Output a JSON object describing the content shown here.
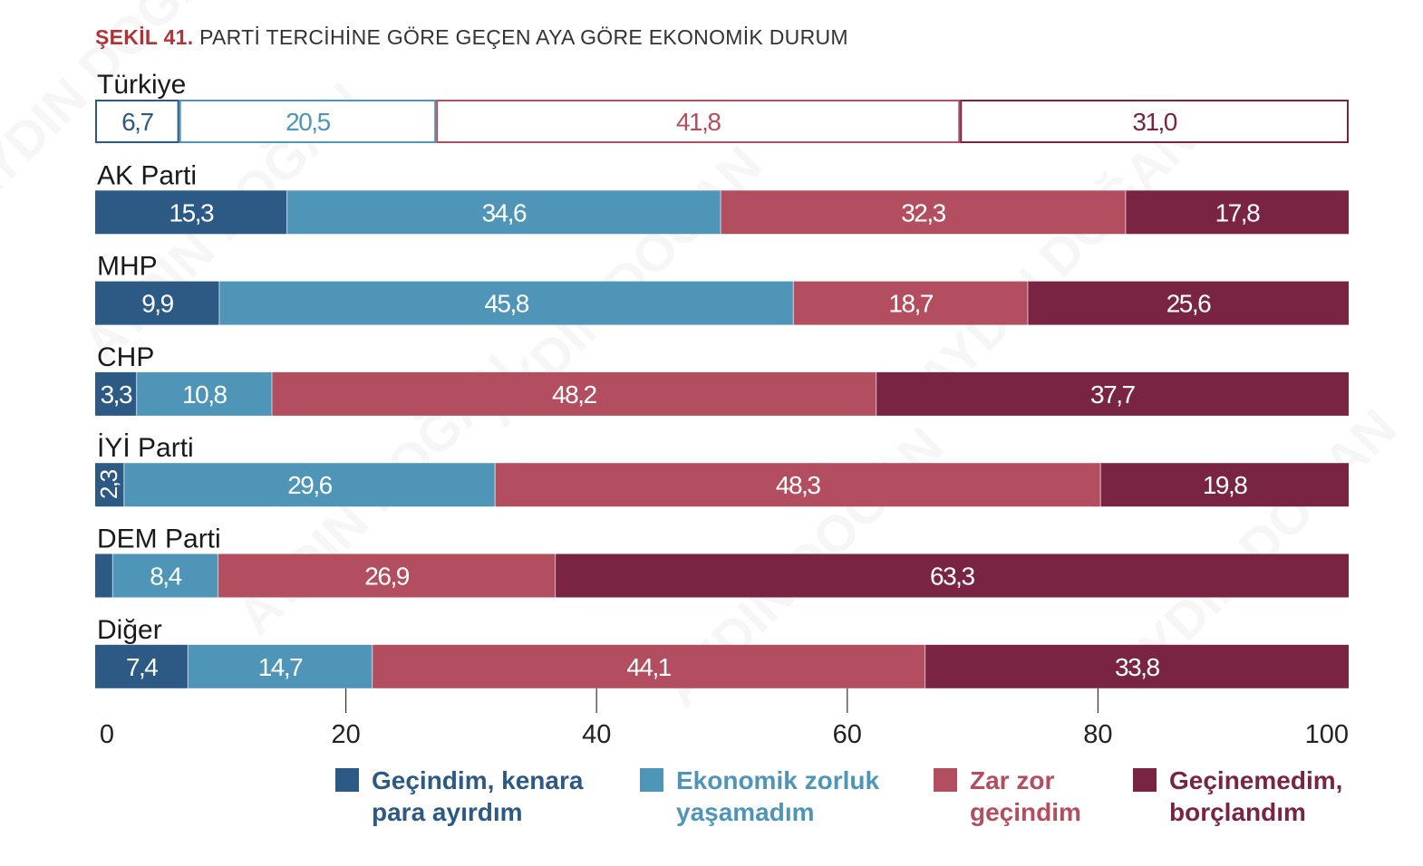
{
  "chart_data": {
    "type": "bar",
    "orientation": "horizontal",
    "stacked": true,
    "title_prefix": "ŞEKİL 41.",
    "title": "PARTİ TERCİHİNE GÖRE GEÇEN AYA GÖRE EKONOMİK DURUM",
    "categories": [
      "Türkiye",
      "AK Parti",
      "MHP",
      "CHP",
      "İYİ Parti",
      "DEM Parti",
      "Diğer"
    ],
    "series": [
      {
        "name": "Geçindim, kenara para ayırdım",
        "label_lines": [
          "Geçindim, kenara",
          "para ayırdım"
        ],
        "color": "#2d5985",
        "values": [
          6.7,
          15.3,
          9.9,
          3.3,
          2.3,
          1.4,
          7.4
        ],
        "labels": [
          "6,7",
          "15,3",
          "9,9",
          "3,3",
          "2,3",
          "",
          "7,4"
        ]
      },
      {
        "name": "Ekonomik zorluk yaşamadım",
        "label_lines": [
          "Ekonomik zorluk",
          "yaşamadım"
        ],
        "color": "#4e95b8",
        "values": [
          20.5,
          34.6,
          45.8,
          10.8,
          29.6,
          8.4,
          14.7
        ],
        "labels": [
          "20,5",
          "34,6",
          "45,8",
          "10,8",
          "29,6",
          "8,4",
          "14,7"
        ]
      },
      {
        "name": "Zar zor geçindim",
        "label_lines": [
          "Zar zor",
          "geçindim"
        ],
        "color": "#b24e5f",
        "values": [
          41.8,
          32.3,
          18.7,
          48.2,
          48.3,
          26.9,
          44.1
        ],
        "labels": [
          "41,8",
          "32,3",
          "18,7",
          "48,2",
          "48,3",
          "26,9",
          "44,1"
        ]
      },
      {
        "name": "Geçinemedim, borçlandım",
        "label_lines": [
          "Geçinemedim,",
          "borçlandım"
        ],
        "color": "#7a2444",
        "values": [
          31.0,
          17.8,
          25.6,
          37.7,
          19.8,
          63.3,
          33.8
        ],
        "labels": [
          "31,0",
          "17,8",
          "25,6",
          "37,7",
          "19,8",
          "63,3",
          "33,8"
        ]
      }
    ],
    "outlined_categories": [
      "Türkiye"
    ],
    "x_ticks": [
      "0",
      "20",
      "40",
      "60",
      "80",
      "100"
    ],
    "xlim": [
      0,
      100
    ],
    "grid": false,
    "legend_position": "bottom"
  },
  "watermark": "AYDIN DOĞAN"
}
